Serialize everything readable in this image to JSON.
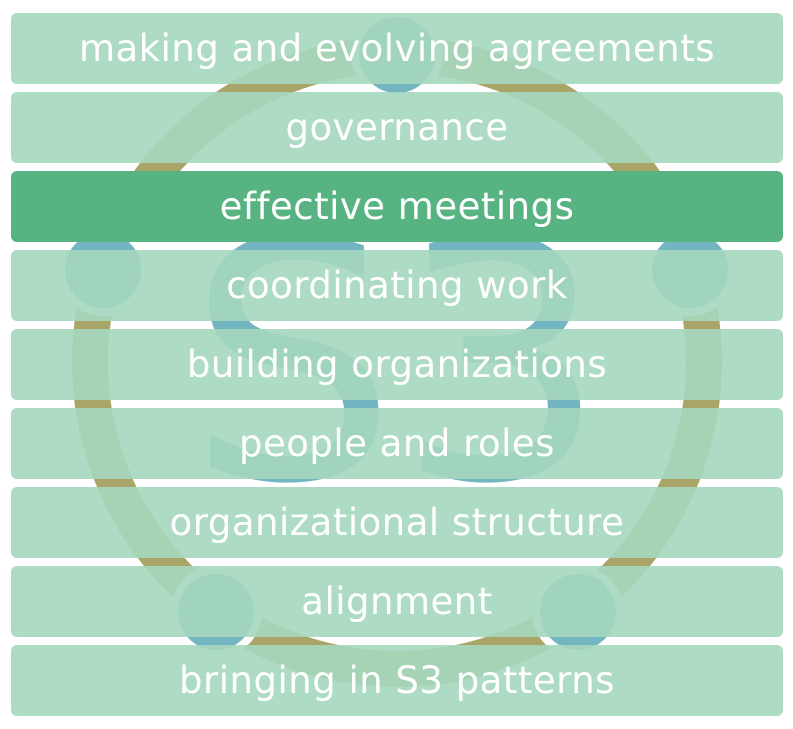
{
  "logo": {
    "letters": "S3",
    "ring_color": "#a9a467",
    "node_color": "#74b5c2",
    "letter_color": "#74b5c2"
  },
  "colors": {
    "row_fill": "#a6d7be",
    "row_active_fill": "#57b382",
    "label_color": "#ffffff"
  },
  "items": [
    {
      "label": "making and evolving agreements",
      "active": false
    },
    {
      "label": "governance",
      "active": false
    },
    {
      "label": "effective meetings",
      "active": true
    },
    {
      "label": "coordinating work",
      "active": false
    },
    {
      "label": "building organizations",
      "active": false
    },
    {
      "label": "people and roles",
      "active": false
    },
    {
      "label": "organizational structure",
      "active": false
    },
    {
      "label": "alignment",
      "active": false
    },
    {
      "label": "bringing in S3 patterns",
      "active": false
    }
  ]
}
